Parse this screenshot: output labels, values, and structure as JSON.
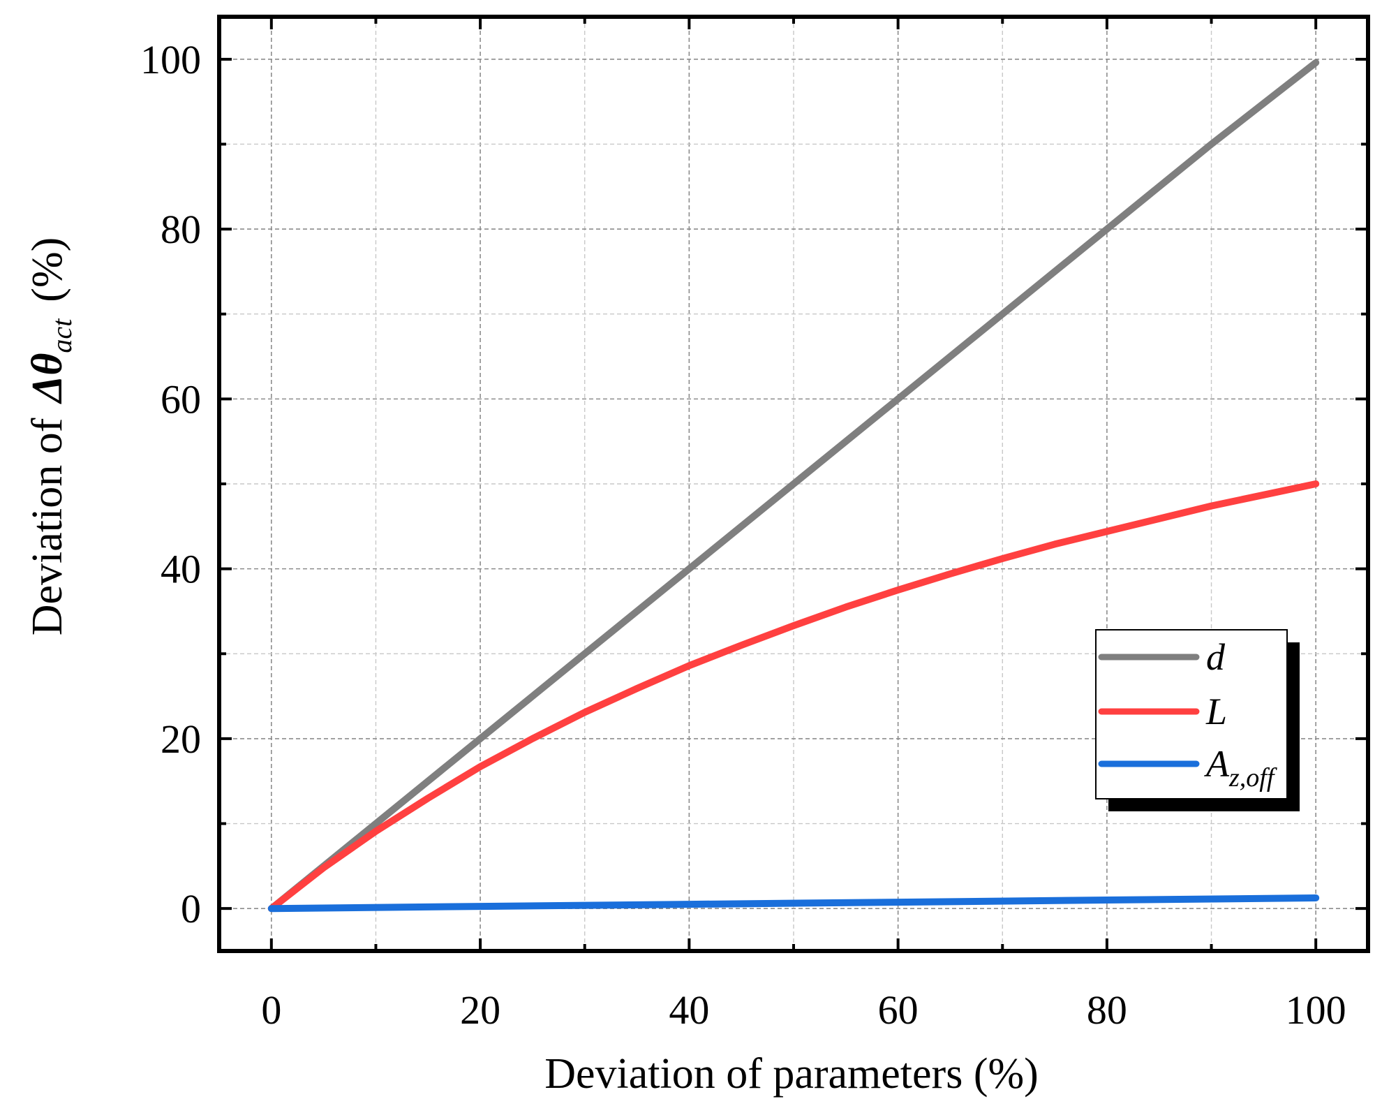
{
  "chart_data": {
    "type": "line",
    "xlabel": "Deviation of parameters (%)",
    "ylabel": {
      "prefix": "Deviation of",
      "symbol": "Δθ",
      "subscript": "act",
      "suffix": "(%)"
    },
    "xlim": [
      -5,
      105
    ],
    "ylim": [
      -5,
      105
    ],
    "xticks": [
      0,
      20,
      40,
      60,
      80,
      100
    ],
    "yticks": [
      0,
      20,
      40,
      60,
      80,
      100
    ],
    "grid": true,
    "legend_position": "right",
    "series": [
      {
        "name": "d",
        "label_main": "d",
        "label_sub": "",
        "color": "#7f7f7f",
        "x": [
          0,
          10,
          20,
          30,
          40,
          50,
          60,
          70,
          80,
          90,
          100
        ],
        "y": [
          0,
          10,
          20,
          30,
          40,
          50,
          60,
          70,
          80,
          90,
          99.6
        ]
      },
      {
        "name": "L",
        "label_main": "L",
        "label_sub": "",
        "color": "#ff4040",
        "x": [
          0,
          5,
          10,
          15,
          20,
          25,
          30,
          35,
          40,
          45,
          50,
          55,
          60,
          65,
          70,
          75,
          80,
          85,
          90,
          95,
          100
        ],
        "y": [
          0,
          4.8,
          9.1,
          13.0,
          16.7,
          20.0,
          23.1,
          25.9,
          28.6,
          31.0,
          33.3,
          35.5,
          37.5,
          39.4,
          41.2,
          42.9,
          44.4,
          45.9,
          47.4,
          48.7,
          50.0
        ]
      },
      {
        "name": "Az,off",
        "label_main": "A",
        "label_sub": "z,off",
        "color": "#1a6fdb",
        "x": [
          0,
          20,
          40,
          60,
          80,
          100
        ],
        "y": [
          0,
          0.25,
          0.5,
          0.75,
          1.0,
          1.25
        ]
      }
    ]
  }
}
